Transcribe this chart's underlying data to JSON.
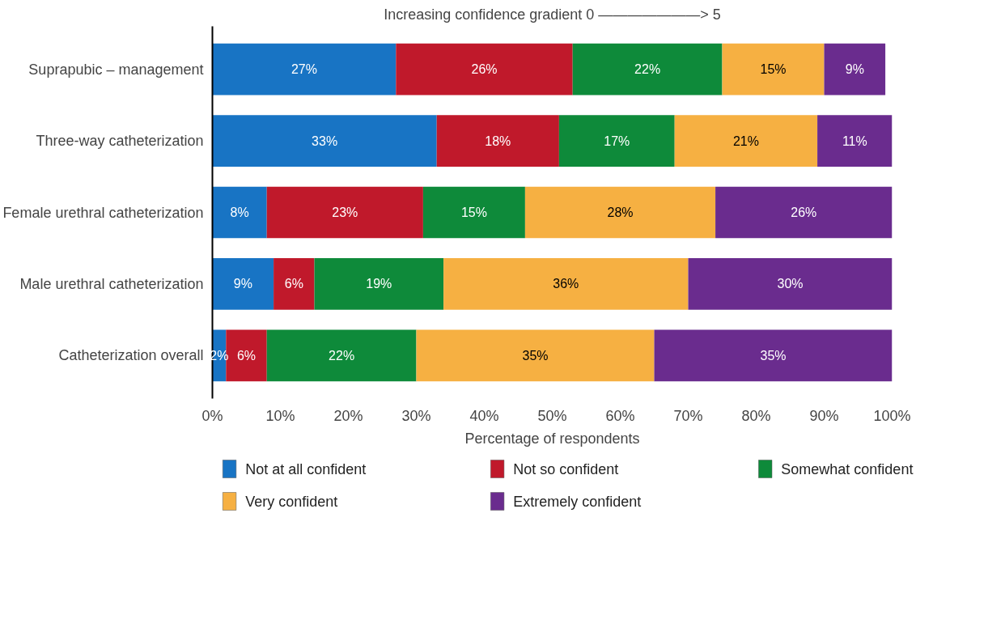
{
  "chart_data": {
    "type": "bar",
    "orientation": "horizontal",
    "stacked": true,
    "title": "Increasing confidence gradient 0 ———————> 5",
    "xlabel": "Percentage of respondents",
    "categories": [
      "Suprapubic – management",
      "Three-way catheterization",
      "Female urethral catheterization",
      "Male urethral catheterization",
      "Catheterization overall"
    ],
    "series": [
      {
        "name": "Not at all confident",
        "color": "#1874c4",
        "values": [
          27,
          33,
          8,
          9,
          2
        ],
        "value_labels": [
          "27%",
          "33%",
          "8%",
          "9%",
          "2%"
        ]
      },
      {
        "name": "Not so confident",
        "color": "#c0192b",
        "values": [
          26,
          18,
          23,
          6,
          6
        ],
        "value_labels": [
          "26%",
          "18%",
          "23%",
          "6%",
          "6%"
        ]
      },
      {
        "name": "Somewhat confident",
        "color": "#0e8a3a",
        "values": [
          22,
          17,
          15,
          19,
          22
        ],
        "value_labels": [
          "22%",
          "17%",
          "15%",
          "19%",
          "22%"
        ]
      },
      {
        "name": "Very confident",
        "color": "#f6b042",
        "values": [
          15,
          21,
          28,
          36,
          35
        ],
        "value_labels": [
          "15%",
          "21%",
          "28%",
          "36%",
          "35%"
        ]
      },
      {
        "name": "Extremely confident",
        "color": "#6a2c8e",
        "values": [
          9,
          11,
          26,
          30,
          35
        ],
        "value_labels": [
          "9%",
          "11%",
          "26%",
          "30%",
          "35%"
        ]
      }
    ],
    "xlim": [
      0,
      100
    ],
    "xticks": [
      {
        "value": 0,
        "label": "0%"
      },
      {
        "value": 10,
        "label": "10%"
      },
      {
        "value": 20,
        "label": "20%"
      },
      {
        "value": 30,
        "label": "30%"
      },
      {
        "value": 40,
        "label": "40%"
      },
      {
        "value": 50,
        "label": "50%"
      },
      {
        "value": 60,
        "label": "60%"
      },
      {
        "value": 70,
        "label": "70%"
      },
      {
        "value": 80,
        "label": "80%"
      },
      {
        "value": 90,
        "label": "90%"
      },
      {
        "value": 100,
        "label": "100%"
      }
    ],
    "grid": false,
    "legend": "bottom"
  }
}
